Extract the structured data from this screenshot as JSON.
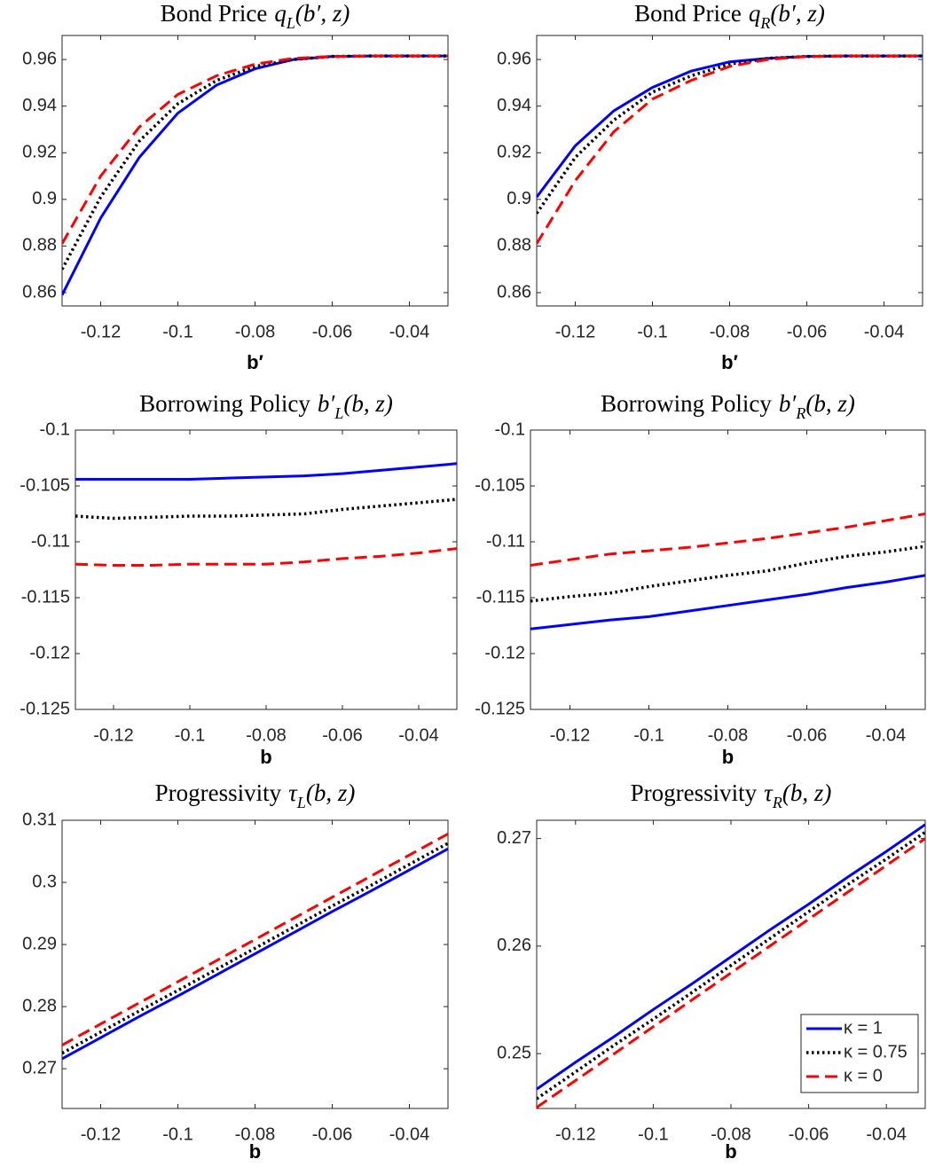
{
  "chart_data": [
    {
      "type": "line",
      "title": "Bond Price",
      "title_symbol": "q",
      "title_subscript": "L",
      "title_args": "(b′, z)",
      "xlabel": "b′",
      "x": [
        -0.13,
        -0.12,
        -0.11,
        -0.1,
        -0.09,
        -0.08,
        -0.07,
        -0.06,
        -0.05,
        -0.04,
        -0.03
      ],
      "xlim": [
        -0.13,
        -0.03
      ],
      "xticks": [
        -0.12,
        -0.1,
        -0.08,
        -0.06,
        -0.04
      ],
      "ylim": [
        0.8543,
        0.9703
      ],
      "yticks": [
        0.86,
        0.88,
        0.9,
        0.92,
        0.94,
        0.96
      ],
      "series": [
        {
          "color": "#0000ff",
          "dash": "solid",
          "values": [
            0.859,
            0.892,
            0.918,
            0.937,
            0.949,
            0.956,
            0.96,
            0.9613,
            0.9615,
            0.9615,
            0.9615
          ]
        },
        {
          "color": "#000000",
          "dash": "dotted",
          "values": [
            0.87,
            0.901,
            0.925,
            0.941,
            0.951,
            0.957,
            0.96,
            0.9613,
            0.9615,
            0.9615,
            0.9615
          ]
        },
        {
          "color": "#ff0000",
          "dash": "dashed",
          "values": [
            0.881,
            0.91,
            0.931,
            0.945,
            0.953,
            0.958,
            0.9605,
            0.9613,
            0.9615,
            0.9615,
            0.9615
          ]
        }
      ]
    },
    {
      "type": "line",
      "title": "Bond Price",
      "title_symbol": "q",
      "title_subscript": "R",
      "title_args": "(b′, z)",
      "xlabel": "b′",
      "x": [
        -0.13,
        -0.12,
        -0.11,
        -0.1,
        -0.09,
        -0.08,
        -0.07,
        -0.06,
        -0.05,
        -0.04,
        -0.03
      ],
      "xlim": [
        -0.13,
        -0.03
      ],
      "xticks": [
        -0.12,
        -0.1,
        -0.08,
        -0.06,
        -0.04
      ],
      "ylim": [
        0.8543,
        0.9703
      ],
      "yticks": [
        0.86,
        0.88,
        0.9,
        0.92,
        0.94,
        0.96
      ],
      "series": [
        {
          "color": "#0000ff",
          "dash": "solid",
          "values": [
            0.901,
            0.923,
            0.938,
            0.948,
            0.955,
            0.959,
            0.9605,
            0.9613,
            0.9615,
            0.9615,
            0.9615
          ]
        },
        {
          "color": "#000000",
          "dash": "dotted",
          "values": [
            0.894,
            0.918,
            0.934,
            0.946,
            0.953,
            0.958,
            0.9605,
            0.9613,
            0.9615,
            0.9615,
            0.9615
          ]
        },
        {
          "color": "#ff0000",
          "dash": "dashed",
          "values": [
            0.881,
            0.908,
            0.929,
            0.943,
            0.951,
            0.957,
            0.96,
            0.9613,
            0.9615,
            0.9615,
            0.9615
          ]
        }
      ]
    },
    {
      "type": "line",
      "title": "Borrowing Policy",
      "title_symbol": "b′",
      "title_subscript": "L",
      "title_args": "(b, z)",
      "xlabel": "b",
      "x": [
        -0.13,
        -0.12,
        -0.11,
        -0.1,
        -0.09,
        -0.08,
        -0.07,
        -0.06,
        -0.05,
        -0.04,
        -0.03
      ],
      "xlim": [
        -0.13,
        -0.03
      ],
      "xticks": [
        -0.12,
        -0.1,
        -0.08,
        -0.06,
        -0.04
      ],
      "ylim": [
        -0.125,
        -0.1
      ],
      "yticks": [
        -0.125,
        -0.12,
        -0.115,
        -0.11,
        -0.105,
        -0.1
      ],
      "series": [
        {
          "color": "#0000ff",
          "dash": "solid",
          "values": [
            -0.1044,
            -0.1044,
            -0.1044,
            -0.1044,
            -0.1043,
            -0.1042,
            -0.1041,
            -0.1039,
            -0.1036,
            -0.1033,
            -0.103
          ]
        },
        {
          "color": "#000000",
          "dash": "dotted",
          "values": [
            -0.1077,
            -0.1079,
            -0.1078,
            -0.1077,
            -0.1077,
            -0.1076,
            -0.1075,
            -0.1071,
            -0.1068,
            -0.1065,
            -0.1062
          ]
        },
        {
          "color": "#ff0000",
          "dash": "dashed",
          "values": [
            -0.112,
            -0.1121,
            -0.1121,
            -0.112,
            -0.112,
            -0.112,
            -0.1118,
            -0.1115,
            -0.1113,
            -0.111,
            -0.1106
          ]
        }
      ]
    },
    {
      "type": "line",
      "title": "Borrowing Policy",
      "title_symbol": "b′",
      "title_subscript": "R",
      "title_args": "(b, z)",
      "xlabel": "b",
      "x": [
        -0.13,
        -0.12,
        -0.11,
        -0.1,
        -0.09,
        -0.08,
        -0.07,
        -0.06,
        -0.05,
        -0.04,
        -0.03
      ],
      "xlim": [
        -0.13,
        -0.03
      ],
      "xticks": [
        -0.12,
        -0.1,
        -0.08,
        -0.06,
        -0.04
      ],
      "ylim": [
        -0.125,
        -0.1
      ],
      "yticks": [
        -0.125,
        -0.12,
        -0.115,
        -0.11,
        -0.105,
        -0.1
      ],
      "series": [
        {
          "color": "#0000ff",
          "dash": "solid",
          "values": [
            -0.1178,
            -0.1174,
            -0.117,
            -0.1167,
            -0.1162,
            -0.1157,
            -0.1152,
            -0.1147,
            -0.1141,
            -0.1136,
            -0.113
          ]
        },
        {
          "color": "#000000",
          "dash": "dotted",
          "values": [
            -0.1153,
            -0.1149,
            -0.1146,
            -0.114,
            -0.1135,
            -0.113,
            -0.1126,
            -0.1119,
            -0.1113,
            -0.1109,
            -0.1104
          ]
        },
        {
          "color": "#ff0000",
          "dash": "dashed",
          "values": [
            -0.1121,
            -0.1116,
            -0.1111,
            -0.1108,
            -0.1105,
            -0.1101,
            -0.1097,
            -0.1092,
            -0.1087,
            -0.1081,
            -0.1075
          ]
        }
      ]
    },
    {
      "type": "line",
      "title": "Progressivity",
      "title_symbol": "τ",
      "title_subscript": "L",
      "title_args": "(b, z)",
      "xlabel": "b",
      "x": [
        -0.13,
        -0.12,
        -0.11,
        -0.1,
        -0.09,
        -0.08,
        -0.07,
        -0.06,
        -0.05,
        -0.04,
        -0.03
      ],
      "xlim": [
        -0.13,
        -0.03
      ],
      "xticks": [
        -0.12,
        -0.1,
        -0.08,
        -0.06,
        -0.04
      ],
      "ylim": [
        0.2636,
        0.31
      ],
      "yticks": [
        0.27,
        0.28,
        0.29,
        0.3,
        0.31
      ],
      "series": [
        {
          "color": "#0000ff",
          "dash": "solid",
          "values": [
            0.2716,
            0.275,
            0.2784,
            0.2817,
            0.2851,
            0.2885,
            0.2919,
            0.2953,
            0.2986,
            0.302,
            0.3054
          ]
        },
        {
          "color": "#000000",
          "dash": "dotted",
          "values": [
            0.2725,
            0.2759,
            0.2793,
            0.2826,
            0.286,
            0.2894,
            0.2928,
            0.2962,
            0.2995,
            0.3029,
            0.3063
          ]
        },
        {
          "color": "#ff0000",
          "dash": "dashed",
          "values": [
            0.2738,
            0.2772,
            0.2806,
            0.284,
            0.2874,
            0.2908,
            0.2942,
            0.2976,
            0.301,
            0.3044,
            0.3078
          ]
        }
      ]
    },
    {
      "type": "line",
      "title": "Progressivity",
      "title_symbol": "τ",
      "title_subscript": "R",
      "title_args": "(b, z)",
      "xlabel": "b",
      "x": [
        -0.13,
        -0.12,
        -0.11,
        -0.1,
        -0.09,
        -0.08,
        -0.07,
        -0.06,
        -0.05,
        -0.04,
        -0.03
      ],
      "xlim": [
        -0.13,
        -0.03
      ],
      "xticks": [
        -0.12,
        -0.1,
        -0.08,
        -0.06,
        -0.04
      ],
      "ylim": [
        0.2449,
        0.2717
      ],
      "yticks": [
        0.25,
        0.26,
        0.27
      ],
      "legend": "lower right",
      "series": [
        {
          "name": "κ = 1",
          "color": "#0000ff",
          "dash": "solid",
          "values": [
            0.2467,
            0.2492,
            0.2516,
            0.2541,
            0.2565,
            0.259,
            0.2615,
            0.2639,
            0.2664,
            0.2688,
            0.2713
          ]
        },
        {
          "name": "κ = 0.75",
          "color": "#000000",
          "dash": "dotted",
          "values": [
            0.2458,
            0.2483,
            0.2508,
            0.2532,
            0.2557,
            0.2582,
            0.2607,
            0.2632,
            0.2657,
            0.2681,
            0.2706
          ]
        },
        {
          "name": "κ = 0",
          "color": "#ff0000",
          "dash": "dashed",
          "values": [
            0.245,
            0.2475,
            0.25,
            0.2525,
            0.255,
            0.2575,
            0.26,
            0.2625,
            0.265,
            0.2675,
            0.27
          ]
        }
      ]
    }
  ]
}
